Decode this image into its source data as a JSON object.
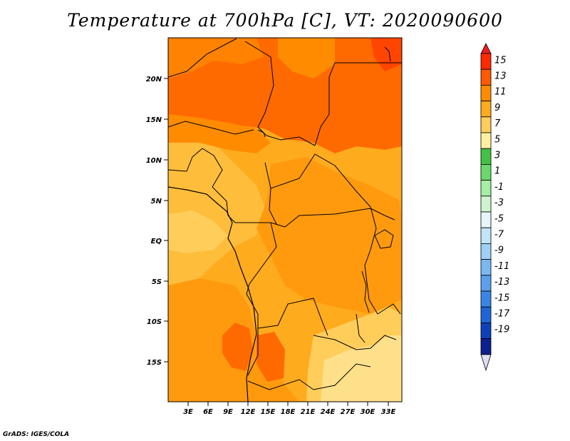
{
  "title": "Temperature at 700hPa [C], VT: 2020090600",
  "credit": "GrADS: IGES/COLA",
  "map": {
    "y_labels": [
      "20N",
      "15N",
      "10N",
      "5N",
      "EQ",
      "5S",
      "10S",
      "15S"
    ],
    "x_labels": [
      "3E",
      "6E",
      "9E",
      "12E",
      "15E",
      "18E",
      "21E",
      "24E",
      "27E",
      "30E",
      "33E"
    ]
  },
  "colorbar": {
    "labels": [
      "15",
      "13",
      "11",
      "9",
      "7",
      "5",
      "3",
      "1",
      "-1",
      "-3",
      "-5",
      "-7",
      "-9",
      "-11",
      "-13",
      "-15",
      "-17",
      "-19"
    ],
    "colors": [
      "#ff2a00",
      "#ff5a00",
      "#ff8c00",
      "#ffab1e",
      "#ffcd5a",
      "#fff0a0",
      "#44c044",
      "#6cd86c",
      "#a6eea6",
      "#cff4cf",
      "#e6f6f6",
      "#c0e4f8",
      "#9fd0f4",
      "#7ab8f0",
      "#5aa0ec",
      "#3a86e6",
      "#1e66d6",
      "#1040b8",
      "#0c2090"
    ],
    "top_color": "#e8211c",
    "bottom_color": "#dcdcf2"
  }
}
